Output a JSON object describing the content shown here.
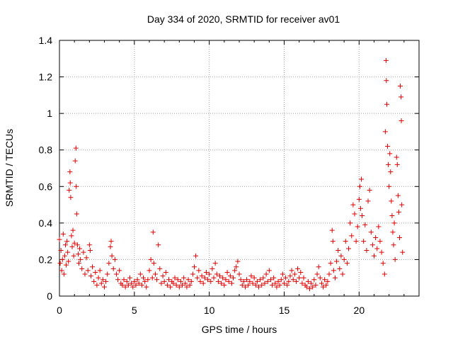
{
  "chart_data": {
    "type": "scatter",
    "title": "Day 334 of 2020, SRMTID for receiver av01",
    "xlabel": "GPS time / hours",
    "ylabel": "SRMTID / TECUs",
    "xlim": [
      0,
      24
    ],
    "ylim": [
      0,
      1.4
    ],
    "xticks": [
      {
        "value": 0,
        "label": "0"
      },
      {
        "value": 5,
        "label": "5"
      },
      {
        "value": 10,
        "label": "10"
      },
      {
        "value": 15,
        "label": "15"
      },
      {
        "value": 20,
        "label": "20"
      }
    ],
    "yticks": [
      {
        "value": 0,
        "label": "0"
      },
      {
        "value": 0.2,
        "label": "0.2"
      },
      {
        "value": 0.4,
        "label": "0.4"
      },
      {
        "value": 0.6,
        "label": "0.6"
      },
      {
        "value": 0.8,
        "label": "0.8"
      },
      {
        "value": 1.0,
        "label": "1"
      },
      {
        "value": 1.2,
        "label": "1.2"
      },
      {
        "value": 1.4,
        "label": "1.4"
      }
    ],
    "grid": true,
    "marker": "+",
    "color": "#e00000",
    "series": [
      {
        "name": "SRMTID",
        "points": [
          [
            0.0,
            0.31
          ],
          [
            0.05,
            0.18
          ],
          [
            0.1,
            0.25
          ],
          [
            0.15,
            0.14
          ],
          [
            0.2,
            0.2
          ],
          [
            0.25,
            0.34
          ],
          [
            0.3,
            0.12
          ],
          [
            0.35,
            0.22
          ],
          [
            0.4,
            0.28
          ],
          [
            0.45,
            0.17
          ],
          [
            0.5,
            0.3
          ],
          [
            0.55,
            0.24
          ],
          [
            0.6,
            0.19
          ],
          [
            0.65,
            0.58
          ],
          [
            0.7,
            0.68
          ],
          [
            0.72,
            0.62
          ],
          [
            0.75,
            0.54
          ],
          [
            0.8,
            0.33
          ],
          [
            0.85,
            0.27
          ],
          [
            0.9,
            0.36
          ],
          [
            0.95,
            0.22
          ],
          [
            1.0,
            0.29
          ],
          [
            1.05,
            0.74
          ],
          [
            1.1,
            0.81
          ],
          [
            1.12,
            0.6
          ],
          [
            1.15,
            0.45
          ],
          [
            1.2,
            0.28
          ],
          [
            1.25,
            0.23
          ],
          [
            1.3,
            0.18
          ],
          [
            1.35,
            0.26
          ],
          [
            1.4,
            0.2
          ],
          [
            1.5,
            0.15
          ],
          [
            1.6,
            0.24
          ],
          [
            1.7,
            0.12
          ],
          [
            1.8,
            0.21
          ],
          [
            1.9,
            0.14
          ],
          [
            2.0,
            0.28
          ],
          [
            2.05,
            0.25
          ],
          [
            2.1,
            0.11
          ],
          [
            2.2,
            0.16
          ],
          [
            2.3,
            0.08
          ],
          [
            2.4,
            0.13
          ],
          [
            2.5,
            0.06
          ],
          [
            2.6,
            0.1
          ],
          [
            2.7,
            0.14
          ],
          [
            2.8,
            0.07
          ],
          [
            2.9,
            0.09
          ],
          [
            3.0,
            0.05
          ],
          [
            3.1,
            0.08
          ],
          [
            3.2,
            0.12
          ],
          [
            3.3,
            0.18
          ],
          [
            3.4,
            0.27
          ],
          [
            3.45,
            0.3
          ],
          [
            3.5,
            0.22
          ],
          [
            3.6,
            0.15
          ],
          [
            3.7,
            0.2
          ],
          [
            3.8,
            0.12
          ],
          [
            3.9,
            0.09
          ],
          [
            4.0,
            0.14
          ],
          [
            4.1,
            0.07
          ],
          [
            4.2,
            0.06
          ],
          [
            4.3,
            0.09
          ],
          [
            4.4,
            0.05
          ],
          [
            4.5,
            0.08
          ],
          [
            4.6,
            0.06
          ],
          [
            4.7,
            0.1
          ],
          [
            4.8,
            0.07
          ],
          [
            4.9,
            0.05
          ],
          [
            5.0,
            0.08
          ],
          [
            5.1,
            0.06
          ],
          [
            5.2,
            0.09
          ],
          [
            5.3,
            0.07
          ],
          [
            5.4,
            0.12
          ],
          [
            5.5,
            0.06
          ],
          [
            5.6,
            0.1
          ],
          [
            5.7,
            0.08
          ],
          [
            5.8,
            0.05
          ],
          [
            5.9,
            0.09
          ],
          [
            6.0,
            0.14
          ],
          [
            6.1,
            0.2
          ],
          [
            6.2,
            0.1
          ],
          [
            6.25,
            0.35
          ],
          [
            6.3,
            0.18
          ],
          [
            6.4,
            0.12
          ],
          [
            6.5,
            0.09
          ],
          [
            6.6,
            0.28
          ],
          [
            6.7,
            0.15
          ],
          [
            6.8,
            0.07
          ],
          [
            6.9,
            0.11
          ],
          [
            7.0,
            0.08
          ],
          [
            7.1,
            0.13
          ],
          [
            7.2,
            0.06
          ],
          [
            7.3,
            0.09
          ],
          [
            7.4,
            0.05
          ],
          [
            7.5,
            0.08
          ],
          [
            7.6,
            0.07
          ],
          [
            7.7,
            0.1
          ],
          [
            7.8,
            0.06
          ],
          [
            7.9,
            0.09
          ],
          [
            8.0,
            0.05
          ],
          [
            8.1,
            0.08
          ],
          [
            8.2,
            0.06
          ],
          [
            8.3,
            0.1
          ],
          [
            8.4,
            0.07
          ],
          [
            8.5,
            0.05
          ],
          [
            8.6,
            0.09
          ],
          [
            8.7,
            0.06
          ],
          [
            8.8,
            0.08
          ],
          [
            8.9,
            0.12
          ],
          [
            9.0,
            0.16
          ],
          [
            9.1,
            0.22
          ],
          [
            9.2,
            0.1
          ],
          [
            9.3,
            0.14
          ],
          [
            9.4,
            0.08
          ],
          [
            9.5,
            0.11
          ],
          [
            9.6,
            0.07
          ],
          [
            9.7,
            0.1
          ],
          [
            9.8,
            0.13
          ],
          [
            9.9,
            0.09
          ],
          [
            10.0,
            0.12
          ],
          [
            10.1,
            0.08
          ],
          [
            10.2,
            0.15
          ],
          [
            10.3,
            0.1
          ],
          [
            10.4,
            0.18
          ],
          [
            10.5,
            0.12
          ],
          [
            10.6,
            0.08
          ],
          [
            10.7,
            0.11
          ],
          [
            10.8,
            0.07
          ],
          [
            10.9,
            0.1
          ],
          [
            11.0,
            0.06
          ],
          [
            11.1,
            0.09
          ],
          [
            11.2,
            0.13
          ],
          [
            11.3,
            0.08
          ],
          [
            11.4,
            0.11
          ],
          [
            11.5,
            0.07
          ],
          [
            11.6,
            0.1
          ],
          [
            11.7,
            0.14
          ],
          [
            11.8,
            0.16
          ],
          [
            11.9,
            0.19
          ],
          [
            12.0,
            0.12
          ],
          [
            12.1,
            0.09
          ],
          [
            12.2,
            0.06
          ],
          [
            12.3,
            0.08
          ],
          [
            12.4,
            0.05
          ],
          [
            12.5,
            0.09
          ],
          [
            12.6,
            0.06
          ],
          [
            12.7,
            0.08
          ],
          [
            12.8,
            0.11
          ],
          [
            12.9,
            0.07
          ],
          [
            13.0,
            0.1
          ],
          [
            13.1,
            0.06
          ],
          [
            13.2,
            0.08
          ],
          [
            13.3,
            0.05
          ],
          [
            13.4,
            0.09
          ],
          [
            13.5,
            0.06
          ],
          [
            13.6,
            0.1
          ],
          [
            13.7,
            0.07
          ],
          [
            13.8,
            0.12
          ],
          [
            13.9,
            0.08
          ],
          [
            14.0,
            0.14
          ],
          [
            14.1,
            0.09
          ],
          [
            14.2,
            0.06
          ],
          [
            14.3,
            0.1
          ],
          [
            14.4,
            0.07
          ],
          [
            14.5,
            0.05
          ],
          [
            14.6,
            0.08
          ],
          [
            14.7,
            0.06
          ],
          [
            14.8,
            0.09
          ],
          [
            14.9,
            0.12
          ],
          [
            15.0,
            0.07
          ],
          [
            15.1,
            0.1
          ],
          [
            15.2,
            0.06
          ],
          [
            15.3,
            0.08
          ],
          [
            15.4,
            0.11
          ],
          [
            15.5,
            0.14
          ],
          [
            15.6,
            0.09
          ],
          [
            15.7,
            0.12
          ],
          [
            15.8,
            0.08
          ],
          [
            15.9,
            0.15
          ],
          [
            16.0,
            0.1
          ],
          [
            16.1,
            0.13
          ],
          [
            16.2,
            0.07
          ],
          [
            16.3,
            0.1
          ],
          [
            16.4,
            0.06
          ],
          [
            16.5,
            0.05
          ],
          [
            16.6,
            0.08
          ],
          [
            16.7,
            0.04
          ],
          [
            16.8,
            0.07
          ],
          [
            16.9,
            0.05
          ],
          [
            17.0,
            0.09
          ],
          [
            17.1,
            0.06
          ],
          [
            17.2,
            0.12
          ],
          [
            17.3,
            0.16
          ],
          [
            17.4,
            0.1
          ],
          [
            17.5,
            0.07
          ],
          [
            17.6,
            0.05
          ],
          [
            17.7,
            0.09
          ],
          [
            17.8,
            0.06
          ],
          [
            17.9,
            0.08
          ],
          [
            18.0,
            0.12
          ],
          [
            18.1,
            0.18
          ],
          [
            18.2,
            0.36
          ],
          [
            18.25,
            0.3
          ],
          [
            18.3,
            0.14
          ],
          [
            18.4,
            0.1
          ],
          [
            18.5,
            0.19
          ],
          [
            18.6,
            0.25
          ],
          [
            18.7,
            0.15
          ],
          [
            18.8,
            0.22
          ],
          [
            18.9,
            0.12
          ],
          [
            19.0,
            0.2
          ],
          [
            19.1,
            0.3
          ],
          [
            19.2,
            0.18
          ],
          [
            19.3,
            0.26
          ],
          [
            19.4,
            0.4
          ],
          [
            19.5,
            0.33
          ],
          [
            19.6,
            0.5
          ],
          [
            19.7,
            0.45
          ],
          [
            19.8,
            0.3
          ],
          [
            19.9,
            0.38
          ],
          [
            20.0,
            0.53
          ],
          [
            20.05,
            0.6
          ],
          [
            20.1,
            0.48
          ],
          [
            20.15,
            0.64
          ],
          [
            20.2,
            0.44
          ],
          [
            20.3,
            0.3
          ],
          [
            20.4,
            0.39
          ],
          [
            20.5,
            0.25
          ],
          [
            20.6,
            0.52
          ],
          [
            20.7,
            0.58
          ],
          [
            20.8,
            0.35
          ],
          [
            20.9,
            0.28
          ],
          [
            21.0,
            0.22
          ],
          [
            21.1,
            0.32
          ],
          [
            21.2,
            0.26
          ],
          [
            21.3,
            0.38
          ],
          [
            21.4,
            0.3
          ],
          [
            21.5,
            0.24
          ],
          [
            21.6,
            0.18
          ],
          [
            21.7,
            0.12
          ],
          [
            21.75,
            0.9
          ],
          [
            21.8,
            1.29
          ],
          [
            21.82,
            1.18
          ],
          [
            21.85,
            1.05
          ],
          [
            21.9,
            0.82
          ],
          [
            21.95,
            0.72
          ],
          [
            22.0,
            0.6
          ],
          [
            22.05,
            0.78
          ],
          [
            22.1,
            0.68
          ],
          [
            22.15,
            0.52
          ],
          [
            22.2,
            0.44
          ],
          [
            22.25,
            0.35
          ],
          [
            22.3,
            0.28
          ],
          [
            22.35,
            0.4
          ],
          [
            22.4,
            0.2
          ],
          [
            22.5,
            0.76
          ],
          [
            22.55,
            0.72
          ],
          [
            22.6,
            0.55
          ],
          [
            22.65,
            0.46
          ],
          [
            22.7,
            0.32
          ],
          [
            22.75,
            1.15
          ],
          [
            22.8,
            1.09
          ],
          [
            22.82,
            0.96
          ],
          [
            22.85,
            0.5
          ],
          [
            22.9,
            0.24
          ]
        ]
      }
    ]
  }
}
